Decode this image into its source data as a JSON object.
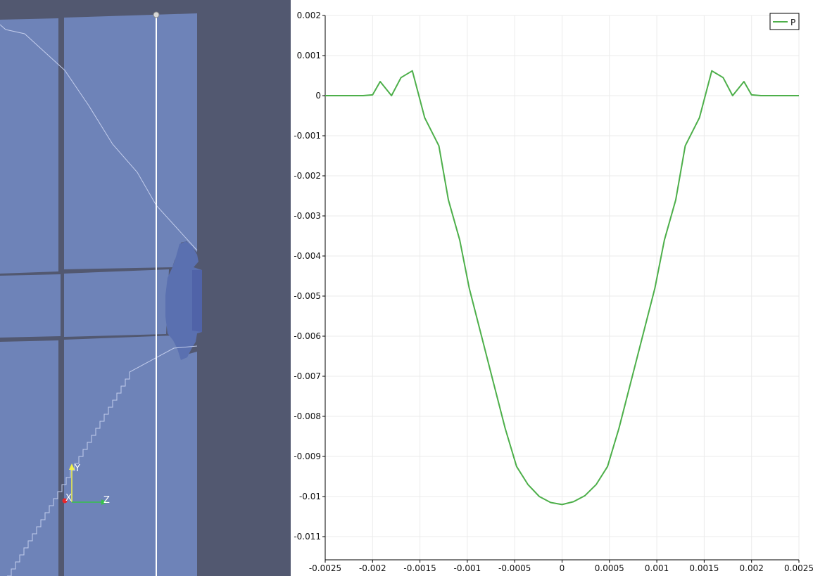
{
  "render_view": {
    "orientation_axes": {
      "x_label": "X",
      "y_label": "Y",
      "z_label": "Z",
      "x_color": "#e8262a",
      "y_color": "#f2f24a",
      "z_color": "#36c24a"
    },
    "background_color": "#525870",
    "surface_color": "#6e83b8",
    "dark_patch_color": "#5a70b0",
    "probe_line_color": "#ffffff"
  },
  "chart_data": {
    "type": "line",
    "title": "",
    "xlabel": "",
    "ylabel": "",
    "xlim": [
      -0.0025,
      0.0025
    ],
    "ylim": [
      -0.0115,
      0.002
    ],
    "grid": true,
    "legend_position": "top-right",
    "x_ticks": [
      "-0.0025",
      "-0.002",
      "-0.0015",
      "-0.001",
      "-0.0005",
      "0",
      "0.0005",
      "0.001",
      "0.0015",
      "0.002",
      "0.0025"
    ],
    "x_tick_values": [
      -0.0025,
      -0.002,
      -0.0015,
      -0.001,
      -0.0005,
      0,
      0.0005,
      0.001,
      0.0015,
      0.002,
      0.0025
    ],
    "y_ticks": [
      "0.002",
      "0.001",
      "0",
      "-0.001",
      "-0.002",
      "-0.003",
      "-0.004",
      "-0.005",
      "-0.006",
      "-0.007",
      "-0.008",
      "-0.009",
      "-0.01",
      "-0.011"
    ],
    "y_tick_values": [
      0.002,
      0.001,
      0,
      -0.001,
      -0.002,
      -0.003,
      -0.004,
      -0.005,
      -0.006,
      -0.007,
      -0.008,
      -0.009,
      -0.01,
      -0.011
    ],
    "series": [
      {
        "name": "P",
        "color": "#4daf4a",
        "x": [
          -0.0025,
          -0.0021,
          -0.002,
          -0.00192,
          -0.0018,
          -0.0017,
          -0.00158,
          -0.00145,
          -0.0013,
          -0.0012,
          -0.00108,
          -0.00098,
          -0.00085,
          -0.00072,
          -0.0006,
          -0.00048,
          -0.00036,
          -0.00024,
          -0.00012,
          0,
          0.00012,
          0.00024,
          0.00036,
          0.00048,
          0.0006,
          0.00072,
          0.00085,
          0.00098,
          0.00108,
          0.0012,
          0.0013,
          0.00145,
          0.00158,
          0.0017,
          0.0018,
          0.00192,
          0.002,
          0.0021,
          0.0025
        ],
        "y": [
          0,
          0,
          2e-05,
          0.00035,
          0,
          0.00045,
          0.00062,
          -0.00055,
          -0.00125,
          -0.0026,
          -0.0036,
          -0.0048,
          -0.006,
          -0.0072,
          -0.0083,
          -0.00925,
          -0.0097,
          -0.01,
          -0.01015,
          -0.0102,
          -0.01013,
          -0.00998,
          -0.0097,
          -0.00925,
          -0.0083,
          -0.0072,
          -0.006,
          -0.0048,
          -0.0036,
          -0.0026,
          -0.00125,
          -0.00055,
          0.00062,
          0.00045,
          0,
          0.00035,
          2e-05,
          0,
          0
        ]
      }
    ]
  }
}
